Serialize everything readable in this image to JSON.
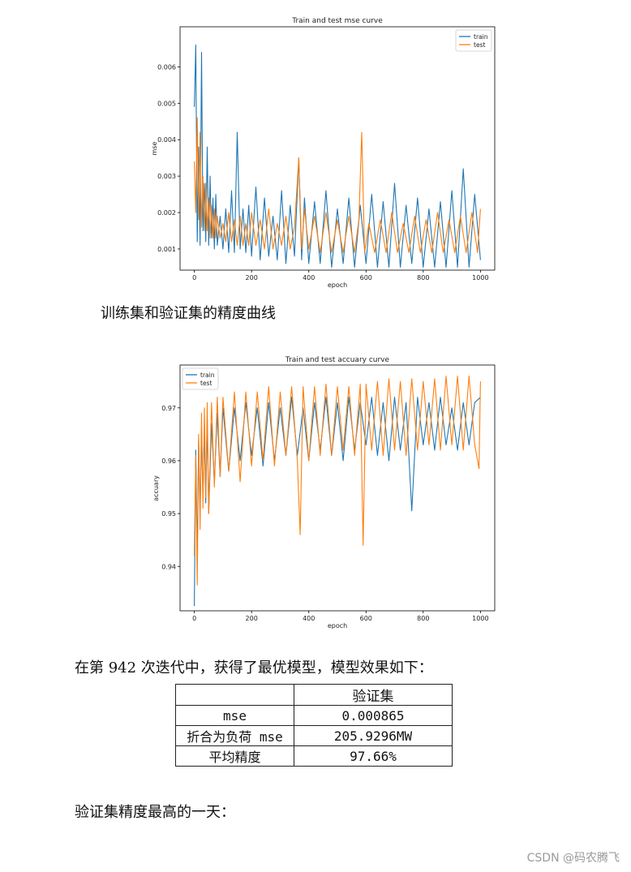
{
  "chart_data": [
    {
      "type": "line",
      "title": "Train and test mse curve",
      "xlabel": "epoch",
      "ylabel": "mse",
      "xlim": [
        -50,
        1050
      ],
      "ylim": [
        0.00042,
        0.0071
      ],
      "xticks": [
        0,
        200,
        400,
        600,
        800,
        1000
      ],
      "yticks": [
        0.001,
        0.002,
        0.003,
        0.004,
        0.005,
        0.006
      ],
      "ytick_labels": [
        "0.001",
        "0.002",
        "0.003",
        "0.004",
        "0.005",
        "0.006"
      ],
      "grid": false,
      "legend": "top-right",
      "series": [
        {
          "name": "train",
          "color": "#1f77b4",
          "x": [
            0,
            5,
            10,
            15,
            20,
            25,
            30,
            35,
            40,
            45,
            50,
            55,
            60,
            65,
            70,
            75,
            80,
            90,
            100,
            110,
            120,
            130,
            140,
            150,
            160,
            170,
            180,
            190,
            200,
            215,
            230,
            245,
            260,
            275,
            290,
            305,
            320,
            335,
            350,
            365,
            375,
            385,
            400,
            420,
            440,
            460,
            480,
            500,
            520,
            540,
            560,
            580,
            600,
            620,
            640,
            660,
            680,
            700,
            720,
            740,
            760,
            780,
            800,
            820,
            840,
            860,
            880,
            900,
            920,
            940,
            960,
            980,
            1000
          ],
          "values": [
            0.0049,
            0.0066,
            0.0012,
            0.0038,
            0.0011,
            0.0064,
            0.0015,
            0.0028,
            0.0012,
            0.0038,
            0.0011,
            0.003,
            0.0013,
            0.0024,
            0.001,
            0.0025,
            0.0011,
            0.0019,
            0.001,
            0.0021,
            0.0009,
            0.0026,
            0.0009,
            0.0042,
            0.001,
            0.0021,
            0.0009,
            0.0022,
            0.0008,
            0.0027,
            0.0007,
            0.0024,
            0.0008,
            0.0019,
            0.0007,
            0.0026,
            0.0006,
            0.0022,
            0.0008,
            0.0035,
            0.0007,
            0.0024,
            0.0006,
            0.0023,
            0.0006,
            0.0026,
            0.0005,
            0.0021,
            0.0006,
            0.0024,
            0.0005,
            0.0022,
            0.0006,
            0.0025,
            0.0005,
            0.0023,
            0.0005,
            0.0028,
            0.0005,
            0.0022,
            0.0006,
            0.0024,
            0.0005,
            0.0021,
            0.0005,
            0.0023,
            0.0005,
            0.0026,
            0.0005,
            0.0032,
            0.0005,
            0.0025,
            0.0007
          ]
        },
        {
          "name": "test",
          "color": "#ff7f0e",
          "x": [
            0,
            5,
            10,
            15,
            20,
            25,
            30,
            35,
            40,
            45,
            50,
            55,
            60,
            65,
            70,
            75,
            80,
            90,
            100,
            110,
            120,
            130,
            140,
            150,
            160,
            170,
            180,
            190,
            200,
            215,
            230,
            245,
            260,
            275,
            290,
            305,
            320,
            335,
            350,
            365,
            375,
            385,
            400,
            420,
            440,
            460,
            480,
            500,
            520,
            540,
            560,
            575,
            585,
            595,
            610,
            630,
            650,
            670,
            690,
            710,
            730,
            750,
            770,
            790,
            810,
            830,
            850,
            870,
            890,
            910,
            930,
            950,
            970,
            990,
            1000
          ],
          "values": [
            0.0034,
            0.002,
            0.0046,
            0.0018,
            0.0042,
            0.0016,
            0.003,
            0.0015,
            0.0028,
            0.0015,
            0.0024,
            0.0013,
            0.0022,
            0.0013,
            0.0021,
            0.0013,
            0.0019,
            0.0013,
            0.0017,
            0.0012,
            0.002,
            0.0012,
            0.0018,
            0.0011,
            0.0019,
            0.0011,
            0.0017,
            0.0011,
            0.002,
            0.0011,
            0.0018,
            0.001,
            0.0021,
            0.001,
            0.0017,
            0.0011,
            0.0019,
            0.001,
            0.0016,
            0.0035,
            0.001,
            0.0021,
            0.001,
            0.0019,
            0.0009,
            0.002,
            0.0009,
            0.0018,
            0.0009,
            0.0019,
            0.0009,
            0.0018,
            0.0042,
            0.0009,
            0.0017,
            0.0009,
            0.0018,
            0.0009,
            0.002,
            0.0009,
            0.0017,
            0.0009,
            0.0019,
            0.0009,
            0.0018,
            0.0009,
            0.002,
            0.0009,
            0.0018,
            0.0009,
            0.0019,
            0.0009,
            0.002,
            0.0009,
            0.0021
          ]
        }
      ]
    },
    {
      "type": "line",
      "title": "Train and test accuary curve",
      "xlabel": "epoch",
      "ylabel": "accuary",
      "xlim": [
        -50,
        1050
      ],
      "ylim": [
        0.9316,
        0.9781
      ],
      "xticks": [
        0,
        200,
        400,
        600,
        800,
        1000
      ],
      "yticks": [
        0.94,
        0.95,
        0.96,
        0.97
      ],
      "ytick_labels": [
        "0.94",
        "0.95",
        "0.96",
        "0.97"
      ],
      "grid": false,
      "legend": "top-left",
      "series": [
        {
          "name": "train",
          "color": "#1f77b4",
          "x": [
            0,
            5,
            10,
            15,
            20,
            25,
            30,
            35,
            40,
            45,
            50,
            60,
            70,
            80,
            90,
            100,
            120,
            140,
            160,
            180,
            200,
            220,
            240,
            260,
            280,
            300,
            320,
            340,
            360,
            380,
            400,
            420,
            440,
            460,
            480,
            500,
            520,
            540,
            560,
            580,
            600,
            620,
            640,
            660,
            680,
            700,
            720,
            740,
            760,
            780,
            800,
            820,
            840,
            860,
            880,
            900,
            920,
            940,
            960,
            980,
            1000
          ],
          "values": [
            0.9325,
            0.962,
            0.942,
            0.964,
            0.95,
            0.966,
            0.953,
            0.966,
            0.952,
            0.968,
            0.95,
            0.967,
            0.956,
            0.969,
            0.957,
            0.97,
            0.958,
            0.97,
            0.96,
            0.971,
            0.961,
            0.97,
            0.959,
            0.971,
            0.96,
            0.97,
            0.961,
            0.972,
            0.961,
            0.97,
            0.96,
            0.971,
            0.962,
            0.972,
            0.961,
            0.971,
            0.96,
            0.972,
            0.962,
            0.971,
            0.963,
            0.972,
            0.961,
            0.971,
            0.96,
            0.972,
            0.962,
            0.971,
            0.9505,
            0.972,
            0.963,
            0.971,
            0.962,
            0.972,
            0.963,
            0.97,
            0.962,
            0.971,
            0.963,
            0.971,
            0.972
          ]
        },
        {
          "name": "test",
          "color": "#ff7f0e",
          "x": [
            0,
            5,
            10,
            15,
            20,
            25,
            30,
            35,
            40,
            45,
            50,
            60,
            70,
            80,
            90,
            100,
            120,
            140,
            160,
            180,
            200,
            220,
            240,
            260,
            280,
            300,
            320,
            340,
            360,
            370,
            380,
            400,
            420,
            440,
            460,
            480,
            500,
            520,
            540,
            560,
            580,
            590,
            600,
            620,
            640,
            660,
            680,
            700,
            720,
            740,
            760,
            780,
            800,
            820,
            840,
            860,
            880,
            900,
            920,
            940,
            960,
            980,
            995,
            1000
          ],
          "values": [
            0.942,
            0.961,
            0.9365,
            0.965,
            0.947,
            0.969,
            0.951,
            0.97,
            0.953,
            0.971,
            0.95,
            0.971,
            0.955,
            0.972,
            0.957,
            0.972,
            0.958,
            0.973,
            0.956,
            0.973,
            0.959,
            0.973,
            0.96,
            0.974,
            0.959,
            0.973,
            0.961,
            0.974,
            0.96,
            0.946,
            0.974,
            0.96,
            0.974,
            0.961,
            0.9745,
            0.961,
            0.974,
            0.962,
            0.974,
            0.961,
            0.9745,
            0.944,
            0.9745,
            0.962,
            0.975,
            0.961,
            0.9755,
            0.962,
            0.975,
            0.961,
            0.9755,
            0.962,
            0.975,
            0.963,
            0.9755,
            0.962,
            0.976,
            0.963,
            0.976,
            0.962,
            0.976,
            0.963,
            0.9585,
            0.975
          ]
        }
      ]
    }
  ],
  "text": {
    "caption_accuracy": "训练集和验证集的精度曲线",
    "intro_line": "在第 942 次迭代中，获得了最优模型，模型效果如下：",
    "footer_line": "验证集精度最高的一天："
  },
  "table": {
    "header": [
      "",
      "验证集"
    ],
    "rows": [
      [
        "mse",
        "0.000865"
      ],
      [
        "折合为负荷 mse",
        "205.9296MW"
      ],
      [
        "平均精度",
        "97.66%"
      ]
    ]
  },
  "watermark": "CSDN @码农腾飞"
}
